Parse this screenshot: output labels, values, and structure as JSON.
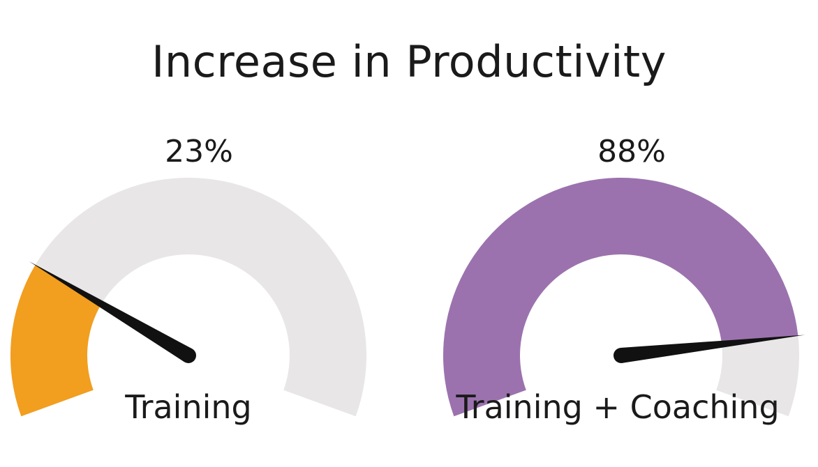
{
  "title": "Increase in Productivity",
  "chart_data": {
    "type": "gauge",
    "title": "Increase in Productivity",
    "range": [
      0,
      100
    ],
    "track_color": "#e8e6e7",
    "needle_color": "#111111",
    "gauges": [
      {
        "label": "Training",
        "value": 23,
        "value_text": "23%",
        "color": "#f29e1f"
      },
      {
        "label": "Training + Coaching",
        "value": 88,
        "value_text": "88%",
        "color": "#9b72ae"
      }
    ]
  }
}
